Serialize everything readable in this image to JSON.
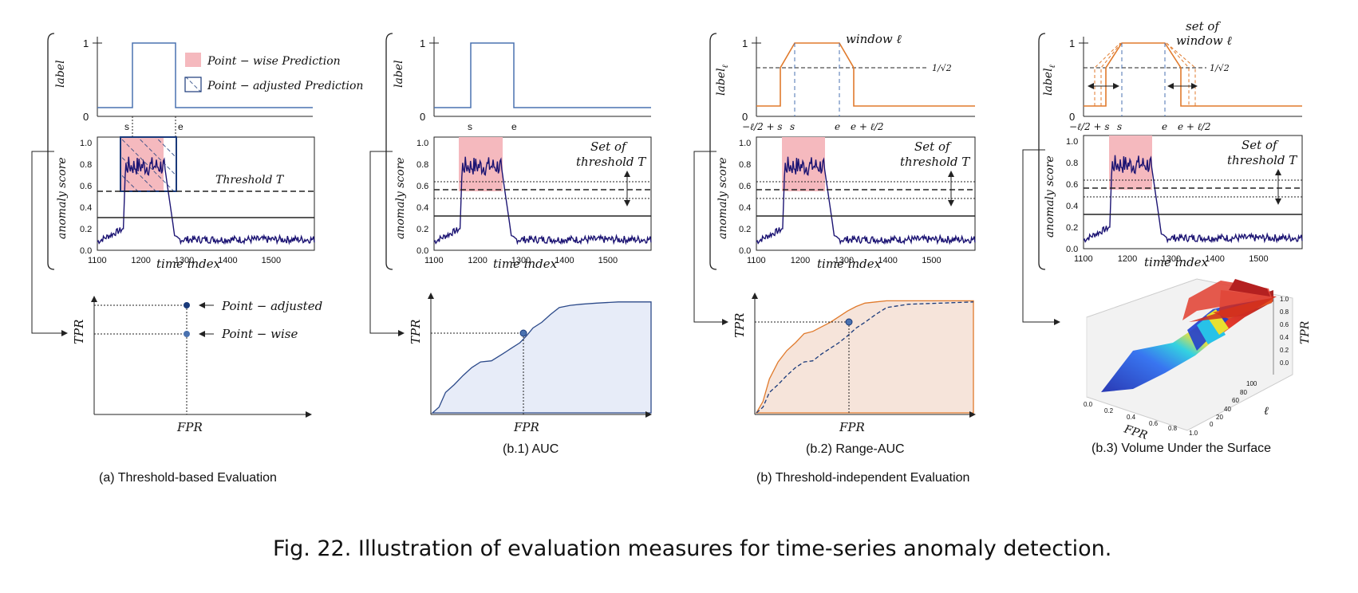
{
  "figure": {
    "caption": "Fig. 22.  Illustration of evaluation measures for time-series anomaly detection.",
    "panel_a_title": "(a) Threshold-based Evaluation",
    "panel_b_title": "(b) Threshold-independent Evaluation",
    "sub_b1": "(b.1) AUC",
    "sub_b2": "(b.2) Range-AUC",
    "sub_b3": "(b.3) Volume Under the Surface"
  },
  "labels": {
    "label_axis": "label",
    "label_l_axis": "label",
    "label_l_sub": "ℓ",
    "one": "1",
    "zero": "0",
    "s": "s",
    "e": "e",
    "score_axis": "anomaly score",
    "time_axis": "time index",
    "tpr": "TPR",
    "fpr": "FPR",
    "threshold": "Threshold T",
    "set_of": "Set of",
    "threshold_t": "threshold T",
    "window": "window ℓ",
    "set_of_lower": "set of",
    "window_l": "window ℓ",
    "inv_sqrt2": "1/√2",
    "minus_l_s": "−ℓ/2 + s",
    "e_plus_l": "e + ℓ/2",
    "legend_pointwise": "Point − wise Prediction",
    "legend_adjusted": "Point − adjusted Prediction",
    "arrow_adjusted": "Point − adjusted",
    "arrow_pointwise": "Point − wise",
    "ell_axis": "ℓ"
  },
  "chart_data": [
    {
      "type": "line",
      "name": "anomaly score series",
      "x_ticks": [
        1100,
        1200,
        1300,
        1400,
        1500
      ],
      "y_ticks": [
        0.0,
        0.2,
        0.4,
        0.6,
        0.8,
        1.0
      ],
      "xlim": [
        1100,
        1600
      ],
      "ylim": [
        0,
        1.05
      ],
      "anomaly_range": [
        1160,
        1260
      ],
      "threshold_levels": [
        0.25,
        0.44,
        0.51,
        0.6
      ],
      "xlabel": "time index",
      "ylabel": "anomaly score"
    },
    {
      "type": "area",
      "name": "(b.1) AUC",
      "x": [
        0,
        0.03,
        0.06,
        0.1,
        0.14,
        0.18,
        0.22,
        0.27,
        0.32,
        0.36,
        0.4,
        0.43,
        0.46,
        0.5,
        0.54,
        0.58,
        0.63,
        0.68,
        0.75,
        0.85,
        1.0
      ],
      "y": [
        0,
        0.05,
        0.18,
        0.25,
        0.33,
        0.4,
        0.45,
        0.46,
        0.52,
        0.57,
        0.62,
        0.68,
        0.75,
        0.8,
        0.87,
        0.93,
        0.95,
        0.96,
        0.97,
        0.98,
        0.98
      ],
      "xlabel": "FPR",
      "ylabel": "TPR"
    },
    {
      "type": "area",
      "name": "(b.2) Range-AUC",
      "x": [
        0,
        0.03,
        0.06,
        0.1,
        0.14,
        0.18,
        0.22,
        0.26,
        0.3,
        0.34,
        0.38,
        0.42,
        0.46,
        0.5,
        0.55,
        0.6,
        0.7,
        0.85,
        1.0
      ],
      "y": [
        0,
        0.1,
        0.3,
        0.45,
        0.55,
        0.62,
        0.7,
        0.72,
        0.76,
        0.8,
        0.85,
        0.9,
        0.94,
        0.97,
        0.98,
        0.99,
        0.99,
        0.99,
        0.99
      ],
      "y_dashed": [
        0,
        0.05,
        0.18,
        0.25,
        0.33,
        0.4,
        0.45,
        0.46,
        0.52,
        0.57,
        0.62,
        0.68,
        0.75,
        0.8,
        0.87,
        0.93,
        0.96,
        0.97,
        0.98
      ],
      "xlabel": "FPR",
      "ylabel": "TPR"
    },
    {
      "type": "surface",
      "name": "(b.3) Volume Under the Surface",
      "x_ticks": [
        0.0,
        0.2,
        0.4,
        0.6,
        0.8,
        1.0
      ],
      "ell_ticks": [
        0,
        20,
        40,
        60,
        80,
        100
      ],
      "z_ticks": [
        0.0,
        0.2,
        0.4,
        0.6,
        0.8,
        1.0
      ],
      "xlabel": "FPR",
      "ylabel": "ℓ",
      "zlabel": "TPR"
    }
  ],
  "colors": {
    "label_blue": "#4a72b0",
    "label_orange": "#e07a2c",
    "series_navy": "#1c1473",
    "pink": "#f5b9be",
    "roc_fill": "#e7ecf8",
    "range_fill": "#f6e4da"
  }
}
